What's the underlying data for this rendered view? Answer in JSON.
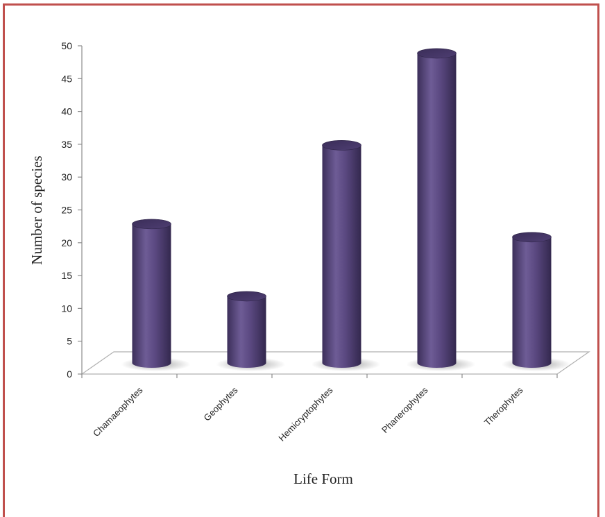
{
  "chart_data": {
    "type": "bar",
    "categories": [
      "Chamaeophytes",
      "Geophytes",
      "Hemicryptophytes",
      "Phanerophytes",
      "Therophytes"
    ],
    "values": [
      22,
      11,
      34,
      48,
      20
    ],
    "title": "",
    "xlabel": "Life Form",
    "ylabel": "Number of species",
    "ylim": [
      0,
      50
    ],
    "yticks": [
      0,
      5,
      10,
      15,
      20,
      25,
      30,
      35,
      40,
      45,
      50
    ],
    "bar_color": "#5b4a7f",
    "frame_color": "#c0504d",
    "grid": false,
    "legend": "none"
  }
}
